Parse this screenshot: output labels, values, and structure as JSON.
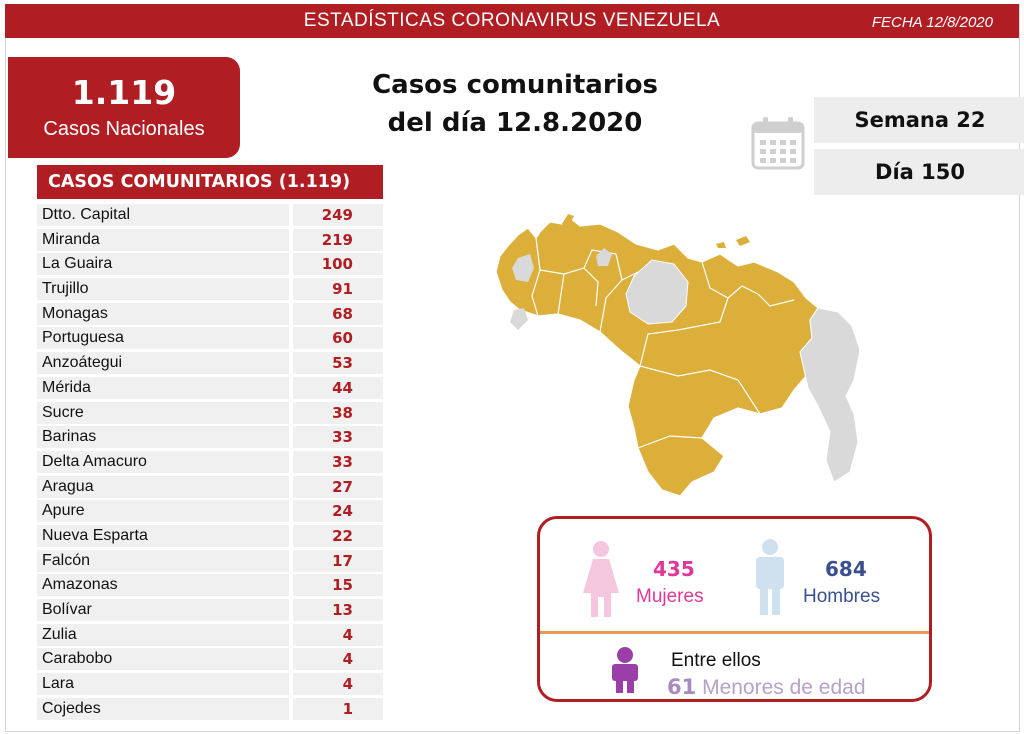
{
  "header": {
    "title": "ESTADÍSTICAS CORONAVIRUS VENEZUELA",
    "date": "FECHA 12/8/2020"
  },
  "total": {
    "number": "1.119",
    "label": "Casos Nacionales"
  },
  "headline": {
    "line1": "Casos comunitarios",
    "line2": "del día 12.8.2020"
  },
  "calendar": {
    "icon": "calendar-icon",
    "week": "Semana 22",
    "day": "Día 150"
  },
  "table": {
    "header": "CASOS COMUNITARIOS (1.119)",
    "rows": [
      {
        "name": "Dtto. Capital",
        "value": "249"
      },
      {
        "name": "Miranda",
        "value": "219"
      },
      {
        "name": "La Guaira",
        "value": "100"
      },
      {
        "name": "Trujillo",
        "value": "91"
      },
      {
        "name": "Monagas",
        "value": "68"
      },
      {
        "name": "Portuguesa",
        "value": "60"
      },
      {
        "name": "Anzoátegui",
        "value": "53"
      },
      {
        "name": "Mérida",
        "value": "44"
      },
      {
        "name": "Sucre",
        "value": "38"
      },
      {
        "name": "Barinas",
        "value": "33"
      },
      {
        "name": "Delta Amacuro",
        "value": "33"
      },
      {
        "name": "Aragua",
        "value": "27"
      },
      {
        "name": "Apure",
        "value": "24"
      },
      {
        "name": "Nueva Esparta",
        "value": "22"
      },
      {
        "name": "Falcón",
        "value": "17"
      },
      {
        "name": "Amazonas",
        "value": "15"
      },
      {
        "name": "Bolívar",
        "value": "13"
      },
      {
        "name": "Zulia",
        "value": "4"
      },
      {
        "name": "Carabobo",
        "value": "4"
      },
      {
        "name": "Lara",
        "value": "4"
      },
      {
        "name": "Cojedes",
        "value": "1"
      }
    ]
  },
  "map": {
    "icon": "venezuela-map",
    "affected_color": "#dcae3a",
    "unaffected_color": "#d9d9d9"
  },
  "gender": {
    "women_count": "435",
    "women_label": "Mujeres",
    "women_color": "#e0389a",
    "men_count": "684",
    "men_label": "Hombres",
    "men_color": "#3b4f8f",
    "minors_intro": "Entre ellos",
    "minors_count": "61",
    "minors_label": "Menores de edad",
    "minors_color": "#9b3fa8"
  }
}
